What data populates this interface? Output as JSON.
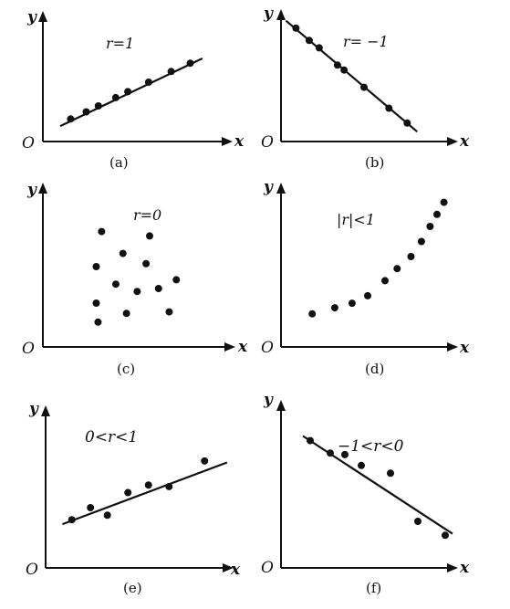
{
  "panels": [
    {
      "id": "a",
      "caption": "(a)",
      "r_label": "r=1",
      "x_label": "x",
      "y_label": "y",
      "origin_label": "O",
      "points": [
        [
          0.16,
          0.19
        ],
        [
          0.25,
          0.25
        ],
        [
          0.32,
          0.3
        ],
        [
          0.42,
          0.37
        ],
        [
          0.49,
          0.42
        ],
        [
          0.61,
          0.5
        ],
        [
          0.74,
          0.59
        ],
        [
          0.85,
          0.66
        ]
      ],
      "fit": [
        [
          0.1,
          0.13
        ],
        [
          0.92,
          0.7
        ]
      ]
    },
    {
      "id": "b",
      "caption": "(b)",
      "r_label": "r= −1",
      "x_label": "x",
      "y_label": "y",
      "origin_label": "O",
      "points": [
        [
          0.09,
          0.92
        ],
        [
          0.17,
          0.82
        ],
        [
          0.23,
          0.76
        ],
        [
          0.34,
          0.62
        ],
        [
          0.38,
          0.58
        ],
        [
          0.5,
          0.44
        ],
        [
          0.65,
          0.27
        ],
        [
          0.76,
          0.15
        ]
      ],
      "fit": [
        [
          0.03,
          0.98
        ],
        [
          0.82,
          0.08
        ]
      ]
    },
    {
      "id": "c",
      "caption": "(c)",
      "r_label": "r=0",
      "x_label": "x",
      "y_label": "y",
      "origin_label": "O",
      "points": [
        [
          0.33,
          0.79
        ],
        [
          0.6,
          0.76
        ],
        [
          0.45,
          0.64
        ],
        [
          0.3,
          0.55
        ],
        [
          0.58,
          0.57
        ],
        [
          0.41,
          0.43
        ],
        [
          0.53,
          0.38
        ],
        [
          0.65,
          0.4
        ],
        [
          0.75,
          0.46
        ],
        [
          0.3,
          0.3
        ],
        [
          0.47,
          0.23
        ],
        [
          0.71,
          0.24
        ],
        [
          0.31,
          0.17
        ]
      ],
      "fit": []
    },
    {
      "id": "d",
      "caption": "(d)",
      "r_label": "|r|<1",
      "x_label": "x",
      "y_label": "y",
      "origin_label": "O",
      "points": [
        [
          0.18,
          0.22
        ],
        [
          0.31,
          0.26
        ],
        [
          0.41,
          0.29
        ],
        [
          0.5,
          0.34
        ],
        [
          0.6,
          0.44
        ],
        [
          0.67,
          0.52
        ],
        [
          0.75,
          0.6
        ],
        [
          0.81,
          0.7
        ],
        [
          0.86,
          0.8
        ],
        [
          0.9,
          0.88
        ],
        [
          0.94,
          0.96
        ]
      ],
      "fit": []
    },
    {
      "id": "e",
      "caption": "(e)",
      "r_label": "0<r<1",
      "x_label": "x",
      "y_label": "y",
      "origin_label": "O",
      "points": [
        [
          0.14,
          0.32
        ],
        [
          0.24,
          0.4
        ],
        [
          0.33,
          0.35
        ],
        [
          0.44,
          0.5
        ],
        [
          0.55,
          0.55
        ],
        [
          0.66,
          0.54
        ],
        [
          0.85,
          0.71
        ]
      ],
      "fit": [
        [
          0.09,
          0.29
        ],
        [
          0.97,
          0.7
        ]
      ]
    },
    {
      "id": "f",
      "caption": "(f)",
      "r_label": "−1<r<0",
      "x_label": "x",
      "y_label": "y",
      "origin_label": "O",
      "points": [
        [
          0.16,
          0.82
        ],
        [
          0.27,
          0.74
        ],
        [
          0.35,
          0.73
        ],
        [
          0.44,
          0.66
        ],
        [
          0.6,
          0.61
        ],
        [
          0.75,
          0.3
        ],
        [
          0.9,
          0.21
        ]
      ],
      "fit": [
        [
          0.12,
          0.85
        ],
        [
          0.94,
          0.22
        ]
      ]
    }
  ]
}
